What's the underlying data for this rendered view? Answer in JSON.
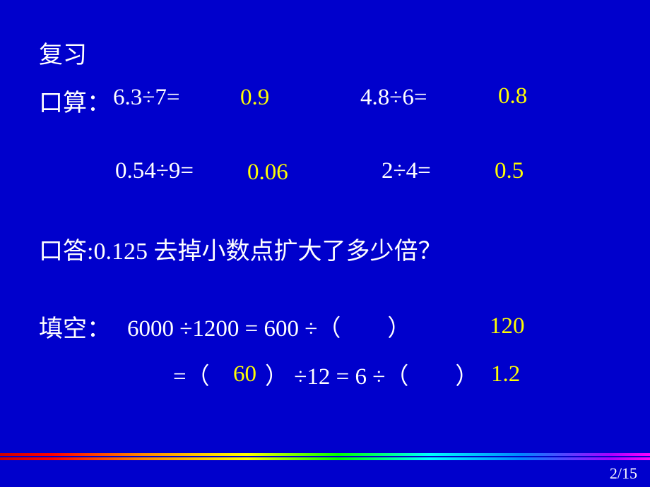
{
  "title": "复习",
  "kousuan_label": "口算：",
  "row1": {
    "q1": "6.3÷7=",
    "a1": "0.9",
    "q2": "4.8÷6=",
    "a2": "0.8"
  },
  "row2": {
    "q1": "0.54÷9=",
    "a1": "0.06",
    "q2": "2÷4=",
    "a2": "0.5"
  },
  "koutou": "口答:0.125 去掉小数点扩大了多少倍？",
  "fill_label": "填空：",
  "fill_line1": "6000 ÷1200 = 600 ÷（　　）",
  "fill_ans1": "120",
  "fill_line2a": "=（",
  "fill_ans2": "60",
  "fill_line2b": "） ÷12 = 6 ÷（　　）",
  "fill_ans3": "1.2",
  "pagenum": "2/15",
  "colors": {
    "background": "#0000cc",
    "text_main": "#ffffff",
    "text_answer": "#ffff00"
  }
}
